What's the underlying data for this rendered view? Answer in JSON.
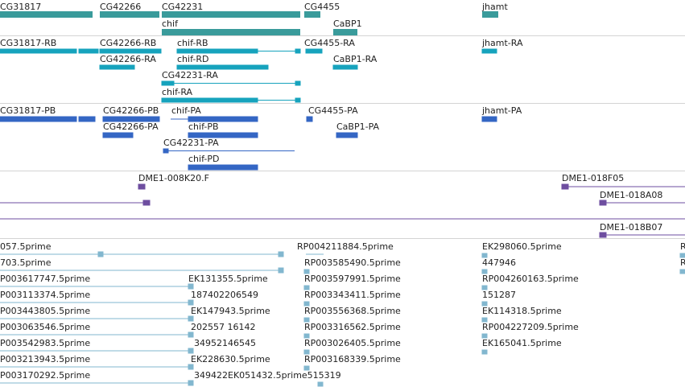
{
  "colors": {
    "gene": "#3a9b9b",
    "transcript_rb": "#16a3bd",
    "transcript_pa": "#3466c4",
    "clone": "#6e4ea0",
    "est": "#82b7cf"
  },
  "tracks": {
    "genes": [
      "CG31817",
      "CG42266",
      "CG42231",
      "chif",
      "CG4455",
      "CaBP1",
      "jhamt"
    ],
    "transcripts_r": [
      "CG31817-RB",
      "CG42266-RB",
      "CG42266-RA",
      "chif-RB",
      "chif-RD",
      "CG42231-RA",
      "chif-RA",
      "CG4455-RA",
      "CaBP1-RA",
      "jhamt-RA"
    ],
    "transcripts_p": [
      "CG31817-PB",
      "CG42266-PB",
      "CG42266-PA",
      "chif-PA",
      "chif-PB",
      "CG42231-PA",
      "chif-PD",
      "CG4455-PA",
      "CaBP1-PA",
      "jhamt-PA"
    ],
    "clones": [
      "DME1-008K20.F",
      "DME1-018F05",
      "DME1-018A08",
      "DME1-018B07"
    ],
    "ests": [
      "057.5prime",
      "RP004211884.5prime",
      "EK298060.5prime",
      "R",
      "703.5prime",
      "RP003585490.5prime",
      "447946",
      "R",
      "P003617747.5prime",
      "EK131355.5prime",
      "RP003597991.5prime",
      "RP004260163.5prime",
      "P003113374.5prime",
      "187402206549",
      "RP003343411.5prime",
      "151287",
      "P003443805.5prime",
      "EK147943.5prime",
      "RP003556368.5prime",
      "EK114318.5prime",
      "P003063546.5prime",
      "202557 16142",
      "RP003316562.5prime",
      "RP004227209.5prime",
      "P003542983.5prime",
      "34952146545",
      "RP003026405.5prime",
      "EK165041.5prime",
      "P003213943.5prime",
      "EK228630.5prime",
      "RP003168339.5prime",
      "P003170292.5prime",
      "349422EK051432.5prime515319"
    ]
  }
}
